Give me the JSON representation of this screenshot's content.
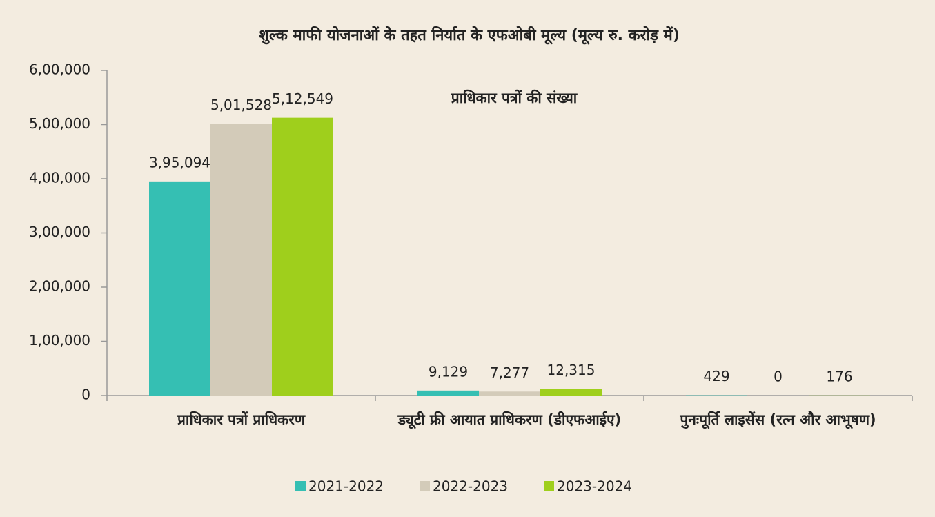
{
  "chart_data": {
    "type": "bar",
    "title": "शुल्क माफी योजनाओं के तहत निर्यात के एफओबी मूल्य (मूल्य रु. करोड़ में)",
    "annotation": "प्राधिकार पत्रों की संख्या",
    "categories": [
      "प्राधिकार पत्रों प्राधिकरण",
      "ड्यूटी फ्री आयात प्राधिकरण (डीएफआईए)",
      "पुनःपूर्ति लाइसेंस (रत्न और आभूषण)"
    ],
    "series": [
      {
        "name": "2021-2022",
        "color": "#35bfb3",
        "values": [
          395094,
          9129,
          429
        ],
        "value_labels": [
          "3,95,094",
          "9,129",
          "429"
        ]
      },
      {
        "name": "2022-2023",
        "color": "#d3cbb9",
        "values": [
          501528,
          7277,
          0
        ],
        "value_labels": [
          "5,01,528",
          "7,277",
          "0"
        ]
      },
      {
        "name": "2023-2024",
        "color": "#9fcf1c",
        "values": [
          512549,
          12315,
          176
        ],
        "value_labels": [
          "5,12,549",
          "12,315",
          "176"
        ]
      }
    ],
    "ylim": [
      0,
      600000
    ],
    "yticks": [
      0,
      {
        "value": 100000,
        "label": "1,00,000"
      },
      {
        "value": 200000,
        "label": "2,00,000"
      },
      {
        "value": 300000,
        "label": "3,00,000"
      },
      {
        "value": 400000,
        "label": "4,00,000"
      },
      {
        "value": 500000,
        "label": "5,00,000"
      },
      {
        "value": 600000,
        "label": "6,00,000"
      }
    ],
    "grid": false,
    "legend": "bottom"
  }
}
